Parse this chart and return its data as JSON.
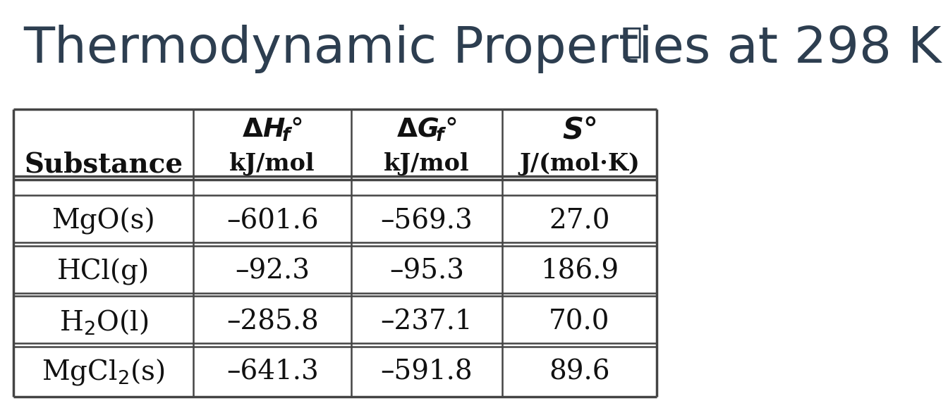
{
  "title": "Thermodynamic Properties at 298 K",
  "title_color": "#2d3e50",
  "title_fontsize": 52,
  "background_color": "#ffffff",
  "text_color": "#111111",
  "link_icon": "⧐",
  "row_header": "Substance",
  "col_header_line1": [
    "ΔHₑ°",
    "ΔGₑ°",
    "S°"
  ],
  "col_header_line2": [
    "kJ/mol",
    "kJ/mol",
    "J/(mol·K)"
  ],
  "substance_render": [
    "MgO(s)",
    "HCl(g)",
    "H$_2$O(l)",
    "MgCl$_2$(s)"
  ],
  "dHf_values": [
    "–601.6",
    "–92.3",
    "–285.8",
    "–641.3"
  ],
  "dGf_values": [
    "–569.3",
    "–95.3",
    "–237.1",
    "–591.8"
  ],
  "S_values": [
    "27.0",
    "186.9",
    "70.0",
    "89.6"
  ],
  "table_line_color": "#444444",
  "lw_outer": 2.5,
  "lw_inner": 1.8
}
